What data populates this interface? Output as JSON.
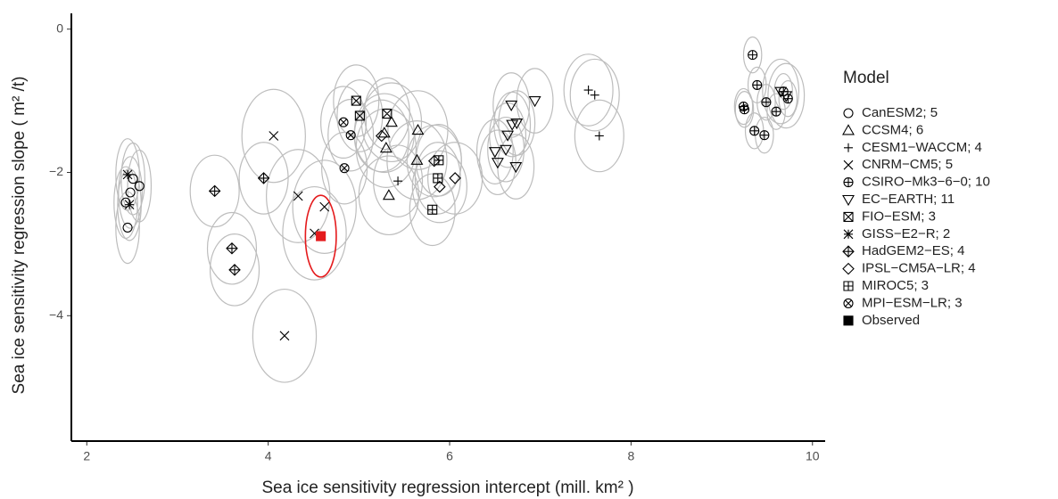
{
  "chart_data": {
    "type": "scatter",
    "xlabel": "Sea ice sensitivity regression intercept (mill.  km² )",
    "ylabel": "Sea ice sensitivity regression slope ( m² /t)",
    "legend_title": "Model",
    "xlim": [
      1.83,
      10.14
    ],
    "ylim": [
      -5.75,
      0.22
    ],
    "xticks": [
      2,
      4,
      6,
      8,
      10
    ],
    "yticks": [
      0,
      {
        "value": -2,
        "label": "−2"
      },
      {
        "value": -4,
        "label": "−4"
      }
    ],
    "ellipse_color": "#bdbdbd",
    "series": [
      {
        "name": "CanESM2; 5",
        "shape": "circle",
        "color": "#000000",
        "x_err": 0.13,
        "y_err": 0.5,
        "x": [
          2.51,
          2.48,
          2.58,
          2.43,
          2.45
        ],
        "values": [
          -2.09,
          -2.28,
          -2.19,
          -2.42,
          -2.77
        ]
      },
      {
        "name": "CCSM4; 6",
        "shape": "triangle",
        "color": "#000000",
        "x_err": 0.33,
        "y_err": 0.55,
        "x": [
          5.65,
          5.28,
          5.3,
          5.64,
          5.33,
          5.36
        ],
        "values": [
          -1.41,
          -1.45,
          -1.66,
          -1.83,
          -2.32,
          -1.3
        ]
      },
      {
        "name": "CESM1−WACCM; 4",
        "shape": "plus",
        "color": "#000000",
        "x_err": 0.27,
        "y_err": 0.5,
        "x": [
          7.53,
          7.6,
          7.65,
          5.43
        ],
        "values": [
          -0.85,
          -0.92,
          -1.49,
          -2.12
        ]
      },
      {
        "name": "CNRM−CM5; 5",
        "shape": "cross",
        "color": "#000000",
        "x_err": 0.35,
        "y_err": 0.65,
        "x": [
          4.06,
          4.33,
          4.62,
          4.51,
          4.18
        ],
        "values": [
          -1.49,
          -2.33,
          -2.48,
          -2.85,
          -4.28
        ]
      },
      {
        "name": "CSIRO−Mk3−6−0; 10",
        "shape": "circle-plus",
        "color": "#000000",
        "x_err": 0.1,
        "y_err": 0.25,
        "x": [
          9.34,
          9.39,
          9.49,
          9.6,
          9.24,
          9.25,
          9.36,
          9.47,
          9.68,
          9.73
        ],
        "values": [
          -0.36,
          -0.78,
          -1.02,
          -1.15,
          -1.08,
          -1.12,
          -1.42,
          -1.48,
          -0.87,
          -0.97
        ]
      },
      {
        "name": "EC−EARTH; 11",
        "shape": "triangle-down",
        "color": "#000000",
        "x_err": 0.2,
        "y_err": 0.45,
        "x": [
          6.94,
          6.68,
          6.74,
          6.69,
          6.64,
          6.62,
          6.5,
          6.53,
          6.73,
          9.65,
          9.71
        ],
        "values": [
          -1.0,
          -1.06,
          -1.31,
          -1.33,
          -1.48,
          -1.68,
          -1.71,
          -1.86,
          -1.92,
          -0.87,
          -0.93
        ]
      },
      {
        "name": "FIO−ESM; 3",
        "shape": "square-x",
        "color": "#000000",
        "x_err": 0.25,
        "y_err": 0.5,
        "x": [
          4.97,
          5.01,
          5.31
        ],
        "values": [
          -1.0,
          -1.21,
          -1.18
        ]
      },
      {
        "name": "GISS−E2−R; 2",
        "shape": "asterisk",
        "color": "#000000",
        "x_err": 0.13,
        "y_err": 0.5,
        "x": [
          2.45,
          2.47
        ],
        "values": [
          -2.03,
          -2.45
        ]
      },
      {
        "name": "HadGEM2−ES; 4",
        "shape": "diamond-plus",
        "color": "#000000",
        "x_err": 0.27,
        "y_err": 0.5,
        "x": [
          3.41,
          3.95,
          3.6,
          3.63
        ],
        "values": [
          -2.26,
          -2.08,
          -3.06,
          -3.36
        ]
      },
      {
        "name": "IPSL−CM5A−LR; 4",
        "shape": "diamond",
        "color": "#000000",
        "x_err": 0.3,
        "y_err": 0.5,
        "x": [
          5.25,
          5.83,
          5.89,
          6.06
        ],
        "values": [
          -1.49,
          -1.84,
          -2.2,
          -2.08
        ]
      },
      {
        "name": "MIROC5; 3",
        "shape": "square-plus",
        "color": "#000000",
        "x_err": 0.25,
        "y_err": 0.5,
        "x": [
          5.88,
          5.87,
          5.81
        ],
        "values": [
          -1.83,
          -2.08,
          -2.52
        ]
      },
      {
        "name": "MPI−ESM−LR; 3",
        "shape": "circle-x",
        "color": "#000000",
        "x_err": 0.25,
        "y_err": 0.5,
        "x": [
          4.83,
          4.91,
          4.84
        ],
        "values": [
          -1.3,
          -1.48,
          -1.94
        ]
      },
      {
        "name": "Observed",
        "shape": "filled-square",
        "color": "#e41a1c",
        "ellipse": "#e41a1c",
        "x_err": 0.17,
        "y_err": 0.57,
        "x": [
          4.58
        ],
        "values": [
          -2.89
        ]
      }
    ]
  }
}
